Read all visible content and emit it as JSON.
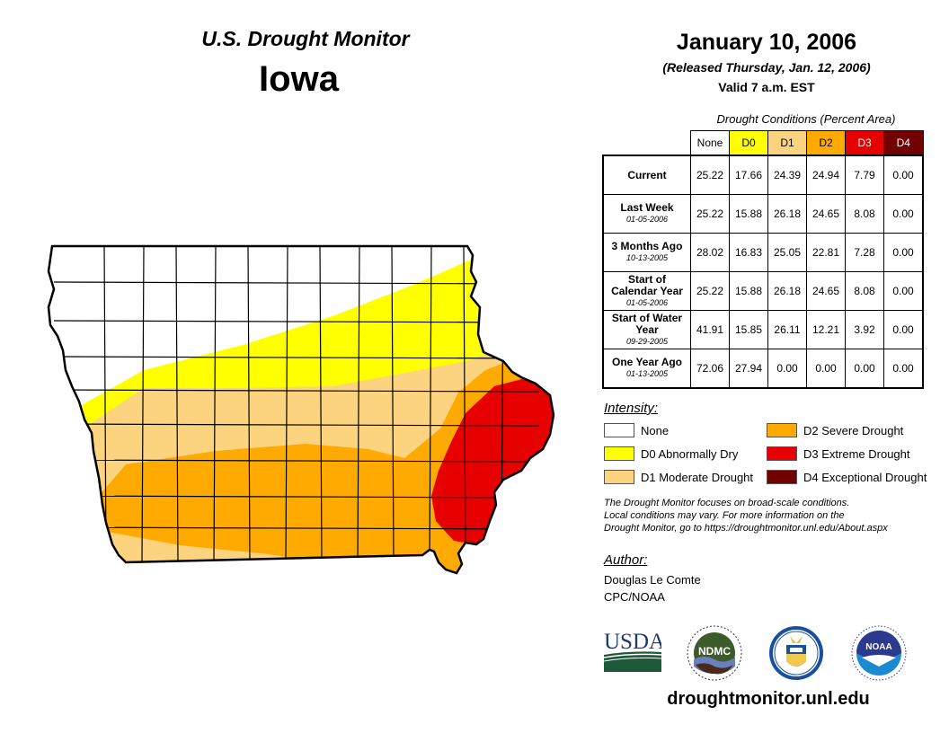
{
  "header": {
    "product": "U.S. Drought Monitor",
    "state": "Iowa",
    "date": "January 10, 2006",
    "released": "(Released Thursday, Jan. 12, 2006)",
    "valid": "Valid 7 a.m. EST"
  },
  "table": {
    "caption": "Drought Conditions (Percent Area)",
    "columns": [
      {
        "label": "None",
        "color": "#ffffff",
        "text_color": "#000000"
      },
      {
        "label": "D0",
        "color": "#ffff00",
        "text_color": "#000000"
      },
      {
        "label": "D1",
        "color": "#fcd37f",
        "text_color": "#000000"
      },
      {
        "label": "D2",
        "color": "#ffaa00",
        "text_color": "#000000"
      },
      {
        "label": "D3",
        "color": "#e60000",
        "text_color": "#ffffff"
      },
      {
        "label": "D4",
        "color": "#730000",
        "text_color": "#ffffff"
      }
    ],
    "rows": [
      {
        "label": "Current",
        "date": "",
        "values": [
          "25.22",
          "17.66",
          "24.39",
          "24.94",
          "7.79",
          "0.00"
        ]
      },
      {
        "label": "Last Week",
        "date": "01-05-2006",
        "values": [
          "25.22",
          "15.88",
          "26.18",
          "24.65",
          "8.08",
          "0.00"
        ]
      },
      {
        "label": "3 Months Ago",
        "date": "10-13-2005",
        "values": [
          "28.02",
          "16.83",
          "25.05",
          "22.81",
          "7.28",
          "0.00"
        ]
      },
      {
        "label": "Start of Calendar Year",
        "date": "01-05-2006",
        "values": [
          "25.22",
          "15.88",
          "26.18",
          "24.65",
          "8.08",
          "0.00"
        ]
      },
      {
        "label": "Start of Water Year",
        "date": "09-29-2005",
        "values": [
          "41.91",
          "15.85",
          "26.11",
          "12.21",
          "3.92",
          "0.00"
        ]
      },
      {
        "label": "One Year Ago",
        "date": "01-13-2005",
        "values": [
          "72.06",
          "27.94",
          "0.00",
          "0.00",
          "0.00",
          "0.00"
        ]
      }
    ]
  },
  "legend": {
    "title": "Intensity:",
    "items": [
      {
        "label": "None",
        "color": "#ffffff"
      },
      {
        "label": "D0 Abnormally Dry",
        "color": "#ffff00"
      },
      {
        "label": "D1 Moderate Drought",
        "color": "#fcd37f"
      },
      {
        "label": "D2 Severe Drought",
        "color": "#ffaa00"
      },
      {
        "label": "D3 Extreme Drought",
        "color": "#e60000"
      },
      {
        "label": "D4 Exceptional Drought",
        "color": "#730000"
      }
    ]
  },
  "note": {
    "line1": "The Drought Monitor focuses on broad-scale conditions.",
    "line2": "Local conditions may vary. For more information on the",
    "line3": "Drought Monitor, go to https://droughtmonitor.unl.edu/About.aspx"
  },
  "author": {
    "title": "Author:",
    "name": "Douglas Le Comte",
    "org": "CPC/NOAA"
  },
  "logos": {
    "usda": "USDA",
    "ndmc": "NDMC",
    "noaa": "NOAA"
  },
  "footer": {
    "url": "droughtmonitor.unl.edu"
  }
}
